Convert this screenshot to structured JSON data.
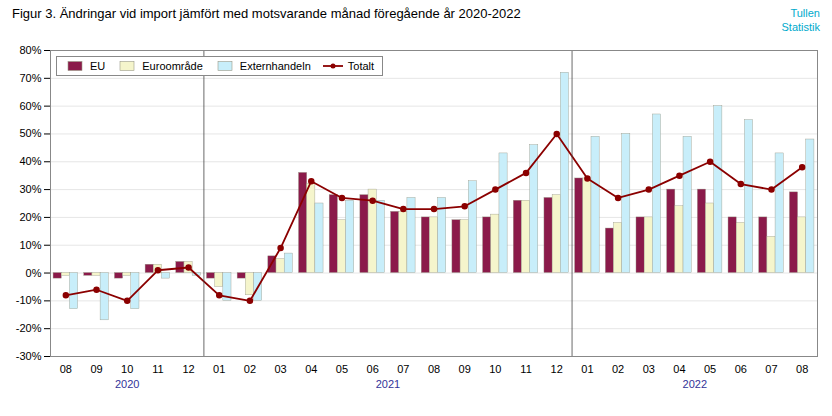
{
  "chart_data": {
    "type": "bar",
    "title": "Figur 3. Ändringar vid import jämfört med motsvarande månad föregående år 2020-2022",
    "categories": [
      "08",
      "09",
      "10",
      "11",
      "12",
      "01",
      "02",
      "03",
      "04",
      "05",
      "06",
      "07",
      "08",
      "09",
      "10",
      "11",
      "12",
      "01",
      "02",
      "03",
      "04",
      "05",
      "06",
      "07",
      "08"
    ],
    "series": [
      {
        "name": "EU",
        "color": "#8B1A4A",
        "values": [
          -2,
          -1,
          -2,
          3,
          4,
          -2,
          -2,
          6,
          36,
          28,
          28,
          22,
          20,
          19,
          20,
          26,
          27,
          34,
          16,
          20,
          30,
          30,
          20,
          20,
          29
        ]
      },
      {
        "name": "Euroområde",
        "color": "#F5F5CC",
        "values": [
          -1,
          -1,
          -1,
          3,
          4,
          -5,
          -8,
          5,
          32,
          19,
          30,
          22,
          20,
          19,
          21,
          26,
          28,
          34,
          18,
          20,
          24,
          25,
          18,
          13,
          20
        ]
      },
      {
        "name": "Externhandeln",
        "color": "#C8EEFA",
        "values": [
          -13,
          -17,
          -13,
          -2,
          -1,
          -10,
          -10,
          7,
          25,
          26,
          26,
          27,
          27,
          33,
          43,
          46,
          72,
          49,
          50,
          57,
          49,
          60,
          55,
          43,
          48
        ]
      },
      {
        "name": "Totalt",
        "type": "line",
        "color": "#8B0000",
        "marker": "circle",
        "values": [
          -8,
          -6,
          -10,
          1,
          2,
          -8,
          -10,
          9,
          33,
          27,
          26,
          23,
          23,
          24,
          30,
          36,
          50,
          34,
          27,
          30,
          35,
          40,
          32,
          30,
          38
        ]
      }
    ],
    "ylim": [
      -30,
      80
    ],
    "yticks": [
      {
        "value": -30,
        "label": "-30%"
      },
      {
        "value": -20,
        "label": "-20%"
      },
      {
        "value": -10,
        "label": "-10%"
      },
      {
        "value": 0,
        "label": "0%"
      },
      {
        "value": 10,
        "label": "10%"
      },
      {
        "value": 20,
        "label": "20%"
      },
      {
        "value": 30,
        "label": "30%"
      },
      {
        "value": 40,
        "label": "40%"
      },
      {
        "value": 50,
        "label": "50%"
      },
      {
        "value": 60,
        "label": "60%"
      },
      {
        "value": 70,
        "label": "70%"
      },
      {
        "value": 80,
        "label": "80%"
      }
    ],
    "grid": true,
    "legend": "upper left",
    "annotations": [
      {
        "text": "Tullen",
        "color": "#00AACC"
      },
      {
        "text": "Statistik",
        "color": "#00AACC"
      },
      {
        "text": "2020",
        "start": 0,
        "end": 4,
        "color": "#333399"
      },
      {
        "text": "2021",
        "start": 5,
        "end": 16,
        "color": "#333399"
      },
      {
        "text": "2022",
        "start": 17,
        "end": 24,
        "color": "#333399"
      }
    ]
  }
}
